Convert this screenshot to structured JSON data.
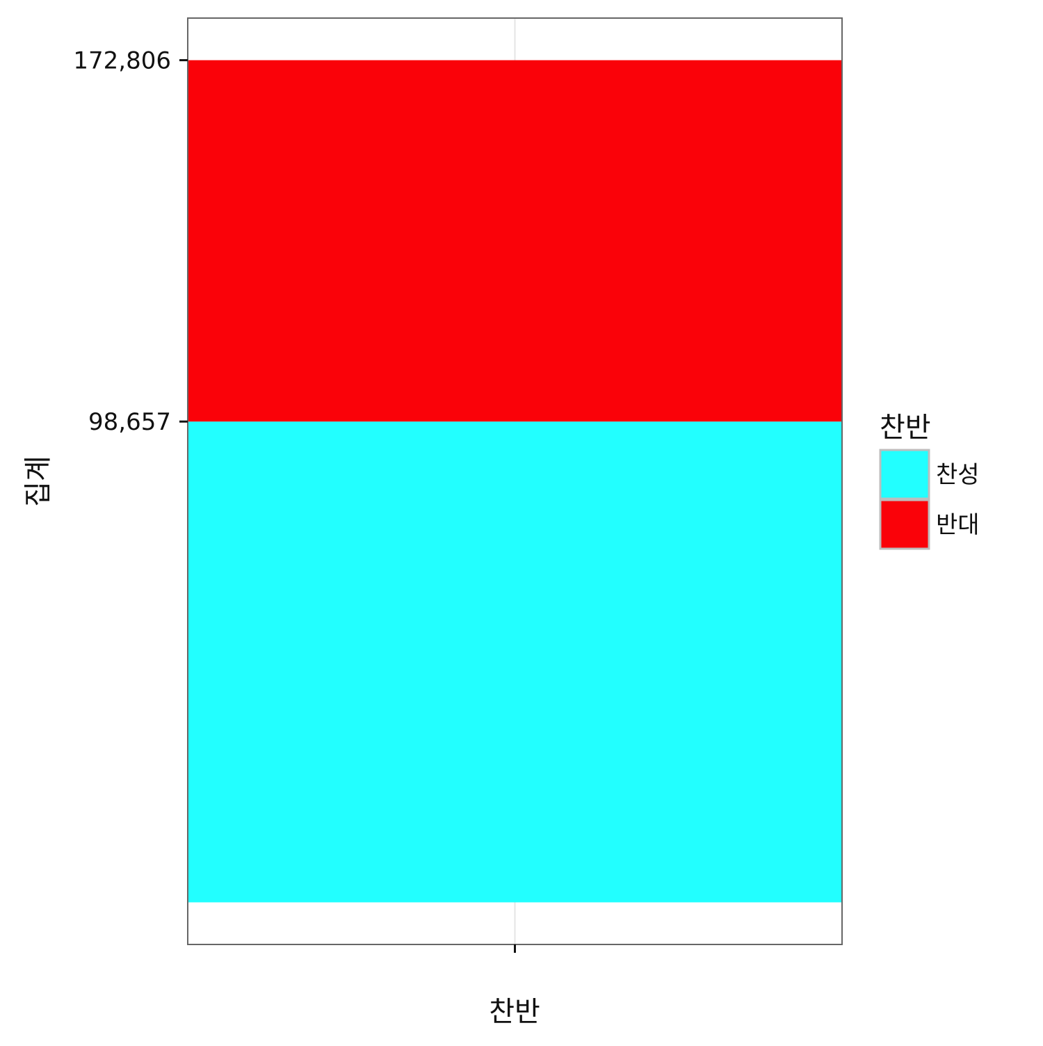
{
  "chart_data": {
    "type": "bar",
    "stacked": true,
    "categories": [
      ""
    ],
    "series": [
      {
        "name": "찬성",
        "values": [
          98657
        ],
        "color": "#22FFFF"
      },
      {
        "name": "반대",
        "values": [
          74149
        ],
        "color": "#FA0209"
      }
    ],
    "yticks": [
      98657,
      172806
    ],
    "ytick_labels": [
      "98,657",
      "172,806"
    ],
    "xlabel": "찬반",
    "ylabel": "집계",
    "ylim": [
      -8640,
      181446
    ],
    "grid": true,
    "legend": {
      "title": "찬반",
      "position": "right"
    },
    "colors": {
      "panel_border": "#666666",
      "grid": "#E5E5E5",
      "background": "#FFFFFF"
    }
  }
}
